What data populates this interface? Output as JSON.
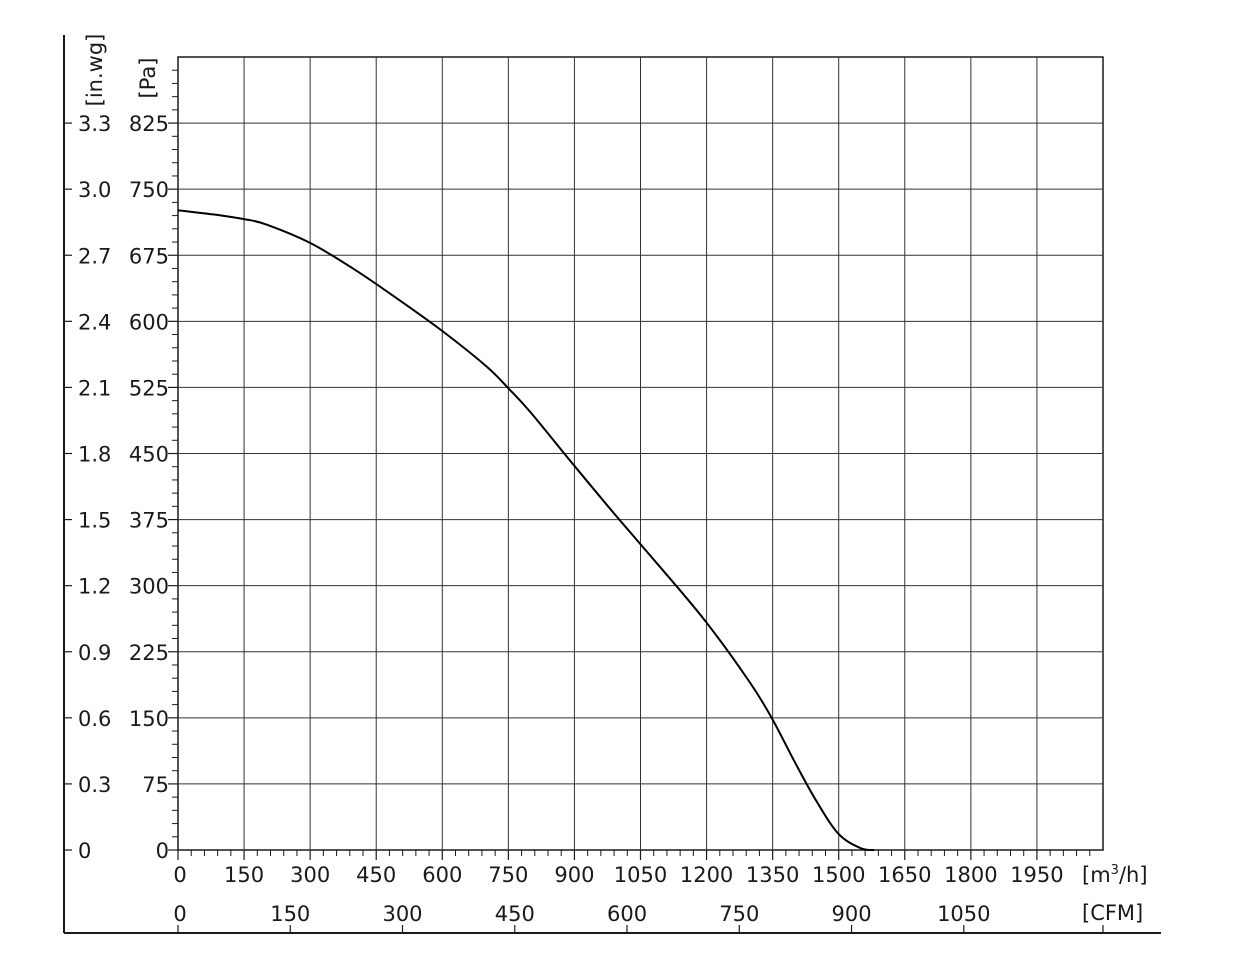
{
  "chart_data": {
    "type": "line",
    "title": "",
    "x_primary": {
      "unit_label": "[m³/h]",
      "unit_base": "[m",
      "unit_sup": "3",
      "unit_tail": "/h]",
      "range": [
        0,
        2100
      ],
      "ticks": [
        "0",
        "150",
        "300",
        "450",
        "600",
        "750",
        "900",
        "1050",
        "1200",
        "1350",
        "1500",
        "1650",
        "1800",
        "1950"
      ]
    },
    "x_secondary": {
      "unit_label": "[CFM]",
      "range": [
        0,
        1236
      ],
      "ticks": [
        "0",
        "150",
        "300",
        "450",
        "600",
        "750",
        "900",
        "1050"
      ]
    },
    "y_primary": {
      "unit_label": "[Pa]",
      "range": [
        0,
        900
      ],
      "ticks": [
        "0",
        "75",
        "150",
        "225",
        "300",
        "375",
        "450",
        "525",
        "600",
        "675",
        "750",
        "825"
      ]
    },
    "y_secondary": {
      "unit_label": "[in.wg]",
      "ticks": [
        "0",
        "0.3",
        "0.6",
        "0.9",
        "1.2",
        "1.5",
        "1.8",
        "2.1",
        "2.4",
        "2.7",
        "3.0",
        "3.3"
      ]
    },
    "grid": true,
    "series": [
      {
        "x": [
          0,
          100,
          150,
          200,
          300,
          400,
          500,
          600,
          700,
          750,
          800,
          900,
          1000,
          1100,
          1200,
          1300,
          1350,
          1400,
          1450,
          1500,
          1550,
          1580
        ],
        "y": [
          726,
          720,
          716,
          710,
          689,
          659,
          625,
          589,
          549,
          524,
          497,
          436,
          376,
          318,
          258,
          189,
          148,
          100,
          55,
          18,
          2,
          0
        ]
      }
    ]
  }
}
